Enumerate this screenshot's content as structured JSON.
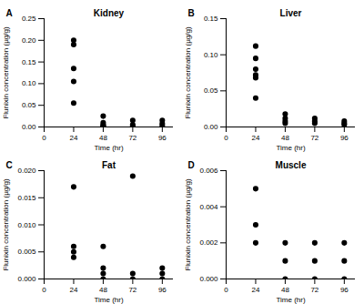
{
  "chart_data": [
    {
      "type": "scatter",
      "title": "Kidney",
      "annotations": [
        "A"
      ],
      "x_label": "Time (hr)",
      "y_label": "Flunixin concentration (µg/g)",
      "x": [
        24,
        24,
        24,
        24,
        24,
        48,
        48,
        48,
        48,
        48,
        72,
        72,
        72,
        96,
        96,
        96
      ],
      "values": [
        0.2,
        0.19,
        0.135,
        0.105,
        0.055,
        0.025,
        0.01,
        0.005,
        0.003,
        0.001,
        0.015,
        0.005,
        0.002,
        0.015,
        0.008,
        0.003
      ],
      "color": "#000000",
      "marker": "circle",
      "xlim": [
        0,
        105
      ],
      "xticks": [
        0,
        24,
        48,
        72,
        96
      ],
      "ylim": [
        0,
        0.25
      ],
      "yticks": [
        {
          "value": 0,
          "label": "0.00"
        },
        {
          "value": 0.05,
          "label": "0.05"
        },
        {
          "value": 0.1,
          "label": "0.10"
        },
        {
          "value": 0.15,
          "label": "0.15"
        },
        {
          "value": 0.2,
          "label": "0.20"
        },
        {
          "value": 0.25,
          "label": "0.25"
        }
      ]
    },
    {
      "type": "scatter",
      "title": "Liver",
      "annotations": [
        "B"
      ],
      "x_label": "Time (hr)",
      "y_label": "Flunixin concentration (µg/g)",
      "x": [
        24,
        24,
        24,
        24,
        24,
        24,
        48,
        48,
        48,
        48,
        72,
        72,
        72,
        96,
        96,
        96
      ],
      "values": [
        0.112,
        0.095,
        0.08,
        0.072,
        0.068,
        0.04,
        0.018,
        0.012,
        0.008,
        0.005,
        0.012,
        0.008,
        0.005,
        0.008,
        0.005,
        0.003
      ],
      "color": "#000000",
      "marker": "circle",
      "xlim": [
        0,
        105
      ],
      "xticks": [
        0,
        24,
        48,
        72,
        96
      ],
      "ylim": [
        0,
        0.15
      ],
      "yticks": [
        {
          "value": 0,
          "label": "0.00"
        },
        {
          "value": 0.05,
          "label": "0.05"
        },
        {
          "value": 0.1,
          "label": "0.10"
        },
        {
          "value": 0.15,
          "label": "0.15"
        }
      ]
    },
    {
      "type": "scatter",
      "title": "Fat",
      "annotations": [
        "C"
      ],
      "x_label": "Time (hr)",
      "y_label": "Flunixin concentration (µg/g)",
      "x": [
        24,
        24,
        24,
        24,
        48,
        48,
        48,
        48,
        72,
        72,
        72,
        96,
        96,
        96
      ],
      "values": [
        0.017,
        0.006,
        0.005,
        0.004,
        0.006,
        0.002,
        0.001,
        0,
        0.019,
        0.001,
        0,
        0.002,
        0.001,
        0
      ],
      "color": "#000000",
      "marker": "circle",
      "xlim": [
        0,
        105
      ],
      "xticks": [
        0,
        24,
        48,
        72,
        96
      ],
      "ylim": [
        0,
        0.02
      ],
      "yticks": [
        {
          "value": 0,
          "label": "0.000"
        },
        {
          "value": 0.005,
          "label": "0.005"
        },
        {
          "value": 0.01,
          "label": "0.010"
        },
        {
          "value": 0.015,
          "label": "0.015"
        },
        {
          "value": 0.02,
          "label": "0.020"
        }
      ]
    },
    {
      "type": "scatter",
      "title": "Muscle",
      "annotations": [
        "D"
      ],
      "x_label": "Time (hr)",
      "y_label": "Flunixin concentration (µg/g)",
      "x": [
        24,
        24,
        24,
        48,
        48,
        48,
        72,
        72,
        72,
        96,
        96,
        96
      ],
      "values": [
        0.005,
        0.003,
        0.002,
        0.002,
        0.001,
        0,
        0.002,
        0.001,
        0,
        0.002,
        0.001,
        0
      ],
      "color": "#000000",
      "marker": "circle",
      "xlim": [
        0,
        105
      ],
      "xticks": [
        0,
        24,
        48,
        72,
        96
      ],
      "ylim": [
        0,
        0.006
      ],
      "yticks": [
        {
          "value": 0,
          "label": "0.000"
        },
        {
          "value": 0.002,
          "label": "0.002"
        },
        {
          "value": 0.004,
          "label": "0.004"
        },
        {
          "value": 0.006,
          "label": "0.006"
        }
      ]
    }
  ]
}
